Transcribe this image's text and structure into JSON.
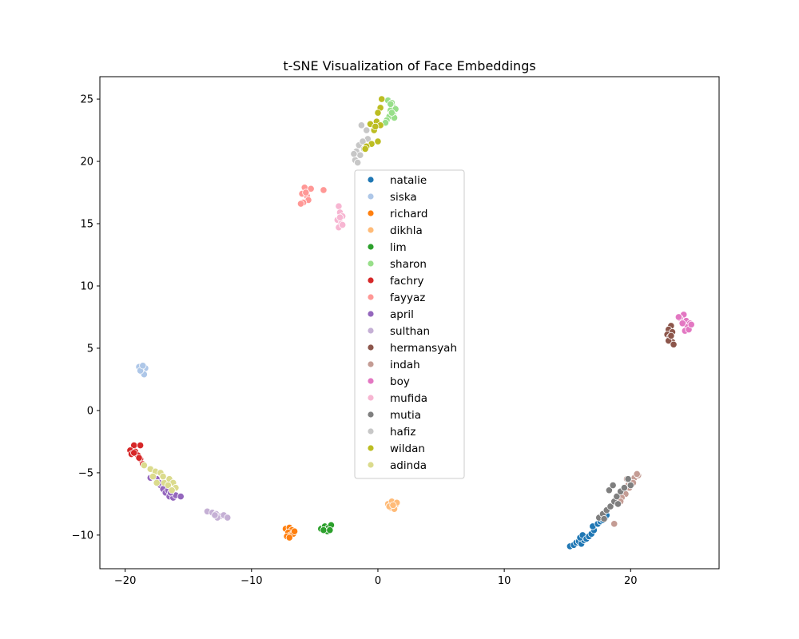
{
  "chart_data": {
    "type": "scatter",
    "title": "t-SNE Visualization of Face Embeddings",
    "xlabel": "",
    "ylabel": "",
    "xlim": [
      -22,
      27
    ],
    "ylim": [
      -12.7,
      26.8
    ],
    "xticks": [
      -20,
      -10,
      0,
      10,
      20
    ],
    "yticks": [
      -10,
      -5,
      0,
      5,
      10,
      15,
      20,
      25
    ],
    "xtick_labels": [
      "−20",
      "−10",
      "0",
      "10",
      "20"
    ],
    "ytick_labels": [
      "−10",
      "−5",
      "0",
      "5",
      "10",
      "15",
      "20",
      "25"
    ],
    "grid": false,
    "legend_position": "center",
    "series": [
      {
        "name": "natalie",
        "color": "#1f77b4",
        "points": [
          [
            15.2,
            -10.9
          ],
          [
            15.5,
            -10.8
          ],
          [
            15.7,
            -10.6
          ],
          [
            15.9,
            -10.5
          ],
          [
            16.1,
            -10.7
          ],
          [
            16.3,
            -10.4
          ],
          [
            16.0,
            -10.2
          ],
          [
            16.2,
            -10.0
          ],
          [
            16.5,
            -10.3
          ],
          [
            16.7,
            -10.1
          ],
          [
            16.9,
            -9.9
          ],
          [
            17.1,
            -9.6
          ],
          [
            17.0,
            -9.3
          ],
          [
            17.4,
            -9.1
          ],
          [
            17.6,
            -8.9
          ],
          [
            17.8,
            -8.8
          ],
          [
            18.0,
            -8.6
          ],
          [
            18.1,
            -8.4
          ]
        ]
      },
      {
        "name": "siska",
        "color": "#aec7e8",
        "points": [
          [
            -18.9,
            3.5
          ],
          [
            -18.6,
            3.3
          ],
          [
            -18.4,
            3.4
          ],
          [
            -18.7,
            3.1
          ],
          [
            -18.5,
            2.9
          ],
          [
            -18.8,
            3.2
          ],
          [
            -18.6,
            3.6
          ]
        ]
      },
      {
        "name": "richard",
        "color": "#ff7f0e",
        "points": [
          [
            -7.3,
            -9.5
          ],
          [
            -7.0,
            -9.4
          ],
          [
            -6.8,
            -9.6
          ],
          [
            -7.1,
            -9.8
          ],
          [
            -6.9,
            -10.0
          ],
          [
            -7.2,
            -10.1
          ],
          [
            -6.7,
            -9.9
          ],
          [
            -7.0,
            -10.2
          ],
          [
            -6.6,
            -9.7
          ]
        ]
      },
      {
        "name": "dikhla",
        "color": "#ffbb78",
        "points": [
          [
            0.8,
            -7.5
          ],
          [
            1.1,
            -7.3
          ],
          [
            1.4,
            -7.6
          ],
          [
            1.0,
            -7.8
          ],
          [
            1.3,
            -7.9
          ],
          [
            0.9,
            -7.7
          ],
          [
            1.5,
            -7.4
          ],
          [
            1.2,
            -7.6
          ]
        ]
      },
      {
        "name": "lim",
        "color": "#2ca02c",
        "points": [
          [
            -4.5,
            -9.5
          ],
          [
            -4.2,
            -9.3
          ],
          [
            -3.9,
            -9.4
          ],
          [
            -3.7,
            -9.2
          ],
          [
            -4.0,
            -9.7
          ],
          [
            -4.3,
            -9.6
          ],
          [
            -3.8,
            -9.6
          ]
        ]
      },
      {
        "name": "sharon",
        "color": "#98df8a",
        "points": [
          [
            0.8,
            24.9
          ],
          [
            1.1,
            24.7
          ],
          [
            1.3,
            24.3
          ],
          [
            1.0,
            24.1
          ],
          [
            1.4,
            24.2
          ],
          [
            1.2,
            23.8
          ],
          [
            0.9,
            23.6
          ],
          [
            1.3,
            23.5
          ],
          [
            0.7,
            23.3
          ],
          [
            1.1,
            23.9
          ],
          [
            0.6,
            23.1
          ],
          [
            1.0,
            24.6
          ]
        ]
      },
      {
        "name": "fachry",
        "color": "#d62728",
        "points": [
          [
            -19.3,
            -2.8
          ],
          [
            -18.8,
            -2.8
          ],
          [
            -19.6,
            -3.2
          ],
          [
            -19.2,
            -3.3
          ],
          [
            -19.5,
            -3.5
          ],
          [
            -19.0,
            -3.6
          ],
          [
            -18.8,
            -3.9
          ],
          [
            -19.3,
            -3.4
          ],
          [
            -18.6,
            -4.3
          ],
          [
            -18.9,
            -3.8
          ]
        ]
      },
      {
        "name": "fayyaz",
        "color": "#ff9896",
        "points": [
          [
            -5.8,
            17.9
          ],
          [
            -5.3,
            17.8
          ],
          [
            -6.0,
            17.4
          ],
          [
            -5.6,
            17.2
          ],
          [
            -5.5,
            16.9
          ],
          [
            -5.9,
            16.7
          ],
          [
            -6.1,
            16.6
          ],
          [
            -5.7,
            17.5
          ],
          [
            -4.3,
            17.7
          ]
        ]
      },
      {
        "name": "april",
        "color": "#9467bd",
        "points": [
          [
            -18.0,
            -5.4
          ],
          [
            -17.5,
            -5.5
          ],
          [
            -17.2,
            -6.0
          ],
          [
            -17.0,
            -6.3
          ],
          [
            -16.8,
            -6.6
          ],
          [
            -16.5,
            -6.9
          ],
          [
            -16.2,
            -7.0
          ],
          [
            -16.0,
            -6.8
          ],
          [
            -15.6,
            -6.9
          ],
          [
            -16.6,
            -6.4
          ],
          [
            -17.3,
            -5.8
          ],
          [
            -16.4,
            -6.6
          ]
        ]
      },
      {
        "name": "sulthan",
        "color": "#c5b0d5",
        "points": [
          [
            -13.5,
            -8.1
          ],
          [
            -13.1,
            -8.2
          ],
          [
            -12.8,
            -8.3
          ],
          [
            -12.5,
            -8.5
          ],
          [
            -12.7,
            -8.6
          ],
          [
            -12.2,
            -8.4
          ],
          [
            -11.9,
            -8.6
          ],
          [
            -12.9,
            -8.4
          ]
        ]
      },
      {
        "name": "hermansyah",
        "color": "#8c564b",
        "points": [
          [
            23.2,
            6.8
          ],
          [
            23.0,
            6.5
          ],
          [
            23.3,
            6.3
          ],
          [
            22.9,
            6.1
          ],
          [
            23.1,
            5.9
          ],
          [
            23.3,
            5.5
          ],
          [
            23.0,
            5.6
          ],
          [
            23.4,
            5.3
          ],
          [
            23.2,
            6.0
          ]
        ]
      },
      {
        "name": "indah",
        "color": "#c49c94",
        "points": [
          [
            19.5,
            -6.4
          ],
          [
            19.8,
            -6.0
          ],
          [
            20.0,
            -5.7
          ],
          [
            20.3,
            -5.4
          ],
          [
            20.6,
            -5.2
          ],
          [
            20.2,
            -5.8
          ],
          [
            19.9,
            -6.2
          ],
          [
            19.6,
            -6.7
          ],
          [
            19.3,
            -7.0
          ],
          [
            19.7,
            -5.5
          ],
          [
            20.5,
            -5.1
          ],
          [
            18.7,
            -9.1
          ],
          [
            19.2,
            -7.3
          ]
        ]
      },
      {
        "name": "boy",
        "color": "#e377c2",
        "points": [
          [
            24.2,
            7.7
          ],
          [
            23.9,
            7.4
          ],
          [
            24.4,
            7.2
          ],
          [
            24.7,
            7.0
          ],
          [
            24.5,
            6.7
          ],
          [
            24.3,
            6.4
          ],
          [
            24.6,
            6.5
          ],
          [
            24.8,
            6.9
          ],
          [
            24.1,
            7.0
          ],
          [
            23.8,
            7.5
          ]
        ]
      },
      {
        "name": "mufida",
        "color": "#f7b6d2",
        "points": [
          [
            -3.1,
            16.4
          ],
          [
            -3.0,
            15.9
          ],
          [
            -2.8,
            15.6
          ],
          [
            -3.2,
            15.3
          ],
          [
            -2.9,
            15.0
          ],
          [
            -3.1,
            14.7
          ],
          [
            -2.8,
            14.9
          ],
          [
            -3.0,
            15.5
          ]
        ]
      },
      {
        "name": "mutia",
        "color": "#7f7f7f",
        "points": [
          [
            17.5,
            -8.6
          ],
          [
            17.8,
            -8.3
          ],
          [
            18.1,
            -8.0
          ],
          [
            18.4,
            -7.7
          ],
          [
            18.7,
            -7.3
          ],
          [
            18.9,
            -6.9
          ],
          [
            19.2,
            -6.5
          ],
          [
            19.5,
            -6.2
          ],
          [
            18.3,
            -6.4
          ],
          [
            18.6,
            -6.0
          ],
          [
            19.0,
            -7.5
          ],
          [
            17.9,
            -8.7
          ],
          [
            20.0,
            -6.0
          ],
          [
            19.8,
            -5.5
          ]
        ]
      },
      {
        "name": "hafiz",
        "color": "#c7c7c7",
        "points": [
          [
            -1.3,
            22.9
          ],
          [
            -0.9,
            22.5
          ],
          [
            -1.5,
            21.3
          ],
          [
            -1.1,
            21.0
          ],
          [
            -1.7,
            20.8
          ],
          [
            -1.4,
            20.5
          ],
          [
            -1.8,
            20.1
          ],
          [
            -1.6,
            19.9
          ],
          [
            -0.8,
            21.8
          ],
          [
            -1.2,
            21.6
          ],
          [
            -1.9,
            20.6
          ]
        ]
      },
      {
        "name": "wildan",
        "color": "#bcbd22",
        "points": [
          [
            0.3,
            25.0
          ],
          [
            0.2,
            24.3
          ],
          [
            0.0,
            23.9
          ],
          [
            -0.1,
            23.2
          ],
          [
            0.2,
            22.9
          ],
          [
            -0.6,
            23.0
          ],
          [
            -0.3,
            22.5
          ],
          [
            -0.2,
            22.8
          ],
          [
            0.0,
            21.6
          ],
          [
            -0.5,
            21.4
          ],
          [
            -0.9,
            21.2
          ],
          [
            -1.0,
            21.0
          ]
        ]
      },
      {
        "name": "adinda",
        "color": "#dbdb8d",
        "points": [
          [
            -18.5,
            -4.4
          ],
          [
            -18.0,
            -4.7
          ],
          [
            -17.6,
            -4.9
          ],
          [
            -17.2,
            -5.0
          ],
          [
            -17.8,
            -5.3
          ],
          [
            -17.5,
            -5.8
          ],
          [
            -16.9,
            -5.8
          ],
          [
            -16.5,
            -5.5
          ],
          [
            -16.2,
            -5.8
          ],
          [
            -16.0,
            -6.2
          ],
          [
            -16.6,
            -6.0
          ],
          [
            -16.3,
            -6.4
          ],
          [
            -17.0,
            -5.3
          ]
        ]
      }
    ]
  }
}
